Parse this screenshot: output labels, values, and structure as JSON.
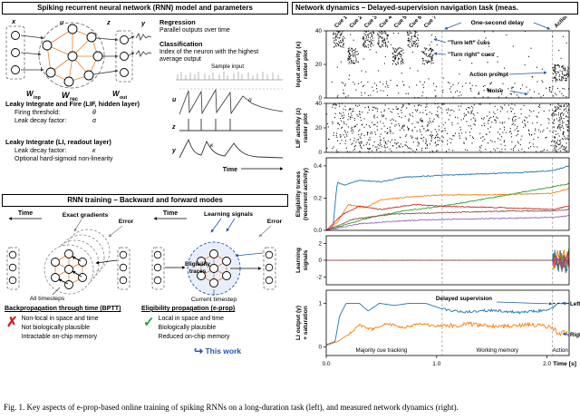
{
  "colors": {
    "annotation_blue": "#2456b0",
    "orange": "#ED7D31",
    "cross_red": "#d62020",
    "check_green": "#2e9e3e"
  },
  "figure": {
    "caption": "Fig. 1.   Key aspects of e-prop-based online training of spiking RNNs on a long-duration task (left), and measured network dynamics (right)."
  },
  "model_panel": {
    "title": "Spiking recurrent neural network (RNN) model and parameters",
    "labels": {
      "x": "x",
      "u": "u",
      "z": "z",
      "y": "y",
      "w": "W",
      "inp": "inp",
      "rec": "rec",
      "out": "out"
    },
    "regression": {
      "title": "Regression",
      "desc": "Parallel outputs over time"
    },
    "classification": {
      "title": "Classification",
      "desc": "Index of the neuron with the highest average output"
    },
    "sample_input_label": "Sample input",
    "lif": {
      "title": "Leaky Integrate and Fire (LIF, hidden layer)",
      "rows": [
        {
          "k": "Firing threshold:",
          "v": "θ"
        },
        {
          "k": "Leak decay factor:",
          "v": "α"
        }
      ]
    },
    "li": {
      "title": "Leaky Integrate (LI, readout layer)",
      "rows": [
        {
          "k": "Leak decay factor:",
          "v": "κ"
        }
      ],
      "note": "Optional hard-sigmoid non-linearity"
    },
    "trace_labels": {
      "u": "u",
      "z": "z",
      "y": "y",
      "alpha": "α",
      "kappa": "κ",
      "time": "Time"
    }
  },
  "training_panel": {
    "title": "RNN training – Backward and forward modes",
    "bptt": {
      "time": "Time",
      "gradients": "Exact gradients",
      "error": "Error",
      "timesteps": "All timesteps",
      "heading": "Backpropagation through time (BPTT)",
      "symbol": "✗",
      "points": [
        "Non-local in space and time",
        "Not biologically plausible",
        "Intractable on-chip memory"
      ]
    },
    "eprop": {
      "time": "Time",
      "signals": "Learning signals",
      "error": "Error",
      "traces_line1": "Eligibility",
      "traces_line2": "traces",
      "timestep": "Current timestep",
      "heading": "Eligibility propagation (e-prop)",
      "symbol": "✓",
      "points": [
        "Local in space and time",
        "Biologically plausible",
        "Reduced on-chip memory"
      ],
      "arrow_glyph": "↪",
      "this_work": "This work"
    }
  },
  "dynamics_panel": {
    "title": "Network dynamics – Delayed-supervision navigation task (meas.",
    "xlabel": "Time [s]",
    "xticks": [
      "0.0",
      "1.0",
      "2.0"
    ],
    "xtick_values": [
      0,
      1,
      2
    ],
    "phase_lines": [
      1.05,
      2.05
    ],
    "annotations": {
      "cues": [
        "Cue 1",
        "Cue 2",
        "Cue 3",
        "Cue 4",
        "Cue 5",
        "Cue 6",
        "Cue 7"
      ],
      "one_second_delay": "One-second delay",
      "action_top": "Action",
      "turn_left": "\"Turn left\" cues",
      "turn_right": "\"Turn right\" cues",
      "action_prompt": "Action prompt",
      "noise": "Noise",
      "delayed_supervision": "Delayed supervision",
      "left": "Left",
      "right": "Right",
      "phases": [
        "Majority cue tracking",
        "Working memory",
        "Action"
      ]
    }
  },
  "chart_data": [
    {
      "type": "raster",
      "name": "input-raster",
      "ylabel_lines": [
        "Input activity (x)",
        "raster plot"
      ],
      "xlim": [
        0,
        2.2
      ],
      "ylim": [
        0,
        40
      ],
      "yticks": [
        0,
        20,
        40
      ],
      "ytick_labels": [
        "0",
        "20",
        "40"
      ],
      "cue_times": [
        0.06,
        0.195,
        0.33,
        0.465,
        0.6,
        0.735,
        0.87
      ],
      "cue_duration": 0.1,
      "cue_directions": [
        "L",
        "R",
        "L",
        "L",
        "R",
        "L",
        "R"
      ],
      "groups": [
        {
          "name": "turn-left-cues",
          "row_range": [
            30,
            40
          ],
          "active": "left-cues",
          "rate": 60
        },
        {
          "name": "turn-right-cues",
          "row_range": [
            20,
            30
          ],
          "active": "right-cues",
          "rate": 60
        },
        {
          "name": "action-prompt",
          "row_range": [
            10,
            20
          ],
          "active": [
            [
              2.05,
              2.2
            ]
          ],
          "rate": 60
        },
        {
          "name": "noise",
          "row_range": [
            0,
            10
          ],
          "active": [
            [
              0,
              2.2
            ]
          ],
          "rate": 7
        },
        {
          "name": "background",
          "row_range": [
            10,
            40
          ],
          "active": [
            [
              0,
              2.2
            ]
          ],
          "rate": 1.2
        }
      ]
    },
    {
      "type": "raster",
      "name": "lif-raster",
      "ylabel_lines": [
        "LIF activity (z)",
        "raster plot"
      ],
      "xlim": [
        0,
        2.2
      ],
      "ylim": [
        0,
        40
      ],
      "yticks": [
        0,
        20,
        40
      ],
      "ytick_labels": [
        "0",
        "20",
        "40"
      ],
      "groups": [
        {
          "name": "baseline",
          "row_range": [
            0,
            40
          ],
          "active": [
            [
              0,
              2.2
            ]
          ],
          "rate": 7
        },
        {
          "name": "cue-response",
          "row_range": [
            0,
            40
          ],
          "active": [
            [
              0.06,
              1.05
            ]
          ],
          "rate": 5
        },
        {
          "name": "action-response",
          "row_range": [
            0,
            40
          ],
          "active": [
            [
              2.05,
              2.2
            ]
          ],
          "rate": 18
        }
      ]
    },
    {
      "type": "line",
      "name": "eligibility-traces",
      "ylabel_lines": [
        "Eligibility traces",
        "(recurrent activity)"
      ],
      "xlim": [
        0,
        2.2
      ],
      "ylim": [
        0,
        0.45
      ],
      "yticks": [
        0,
        0.2,
        0.4
      ],
      "ytick_labels": [
        "0.0",
        "0.2",
        "0.4"
      ],
      "series": [
        {
          "color": "#1f77b4",
          "noise": 0.003,
          "points": [
            [
              0,
              0
            ],
            [
              0.06,
              0.02
            ],
            [
              0.1,
              0.3
            ],
            [
              0.16,
              0.28
            ],
            [
              0.3,
              0.31
            ],
            [
              0.5,
              0.3
            ],
            [
              0.7,
              0.33
            ],
            [
              1.0,
              0.34
            ],
            [
              1.4,
              0.35
            ],
            [
              1.8,
              0.36
            ],
            [
              2.05,
              0.37
            ],
            [
              2.2,
              0.4
            ]
          ]
        },
        {
          "color": "#ff7f0e",
          "noise": 0.003,
          "points": [
            [
              0,
              0
            ],
            [
              0.1,
              0.05
            ],
            [
              0.2,
              0.16
            ],
            [
              0.35,
              0.14
            ],
            [
              0.5,
              0.19
            ],
            [
              0.8,
              0.21
            ],
            [
              1.05,
              0.22
            ],
            [
              1.5,
              0.22
            ],
            [
              2.05,
              0.23
            ],
            [
              2.2,
              0.26
            ]
          ]
        },
        {
          "color": "#2ca02c",
          "noise": 0.003,
          "points": [
            [
              0,
              0
            ],
            [
              0.2,
              0.04
            ],
            [
              0.4,
              0.08
            ],
            [
              0.7,
              0.12
            ],
            [
              1.05,
              0.15
            ],
            [
              1.4,
              0.19
            ],
            [
              1.8,
              0.24
            ],
            [
              2.05,
              0.27
            ],
            [
              2.2,
              0.29
            ]
          ]
        },
        {
          "color": "#d62728",
          "noise": 0.003,
          "points": [
            [
              0,
              0
            ],
            [
              0.15,
              0.1
            ],
            [
              0.3,
              0.15
            ],
            [
              0.5,
              0.13
            ],
            [
              0.8,
              0.16
            ],
            [
              1.05,
              0.15
            ],
            [
              1.6,
              0.14
            ],
            [
              2.05,
              0.13
            ],
            [
              2.2,
              0.15
            ]
          ]
        },
        {
          "color": "#9467bd",
          "noise": 0.003,
          "points": [
            [
              0,
              0
            ],
            [
              0.3,
              0.04
            ],
            [
              0.7,
              0.06
            ],
            [
              1.2,
              0.07
            ],
            [
              2.05,
              0.08
            ],
            [
              2.2,
              0.09
            ]
          ]
        },
        {
          "color": "#8c564b",
          "noise": 0.003,
          "points": [
            [
              0,
              0
            ],
            [
              0.25,
              0.07
            ],
            [
              0.6,
              0.1
            ],
            [
              1.05,
              0.11
            ],
            [
              1.7,
              0.12
            ],
            [
              2.05,
              0.12
            ],
            [
              2.2,
              0.13
            ]
          ]
        }
      ]
    },
    {
      "type": "line",
      "name": "learning-signals",
      "ylabel_lines": [
        "Learning",
        "signals"
      ],
      "xlim": [
        0,
        2.2
      ],
      "ylim": [
        -2.9,
        2.9
      ],
      "yticks": [
        -2,
        0,
        2
      ],
      "ytick_labels": [
        "-2",
        "0",
        "2"
      ],
      "series": [
        {
          "burst": true,
          "flat_until": 2.05,
          "amplitude": 1.9,
          "color": "#1f77b4"
        },
        {
          "burst": true,
          "flat_until": 2.05,
          "amplitude": 1.7,
          "color": "#ff7f0e"
        },
        {
          "burst": true,
          "flat_until": 2.05,
          "amplitude": 1.8,
          "color": "#2ca02c"
        },
        {
          "burst": true,
          "flat_until": 2.05,
          "amplitude": 1.6,
          "color": "#d62728"
        },
        {
          "burst": true,
          "flat_until": 2.05,
          "amplitude": 1.5,
          "color": "#9467bd"
        },
        {
          "burst": true,
          "flat_until": 2.05,
          "amplitude": 1.4,
          "color": "#8c564b"
        }
      ]
    },
    {
      "type": "line",
      "name": "li-output",
      "ylabel_lines": [
        "LI output (y)",
        "+ saturation"
      ],
      "xlim": [
        0,
        2.2
      ],
      "ylim": [
        -0.2,
        1.3
      ],
      "yticks": [
        0,
        1
      ],
      "ytick_labels": [
        "0",
        "1"
      ],
      "clip": 1.0,
      "target": {
        "t": [
          2.05,
          2.2
        ],
        "v": 1.0
      },
      "series": [
        {
          "name": "Left",
          "color": "#1f77b4",
          "points": [
            [
              0,
              0.05
            ],
            [
              0.08,
              0.12
            ],
            [
              0.12,
              0.7
            ],
            [
              0.18,
              1.0
            ],
            [
              0.3,
              1.0
            ],
            [
              0.38,
              0.82
            ],
            [
              0.48,
              1.0
            ],
            [
              0.62,
              0.95
            ],
            [
              0.75,
              1.0
            ],
            [
              0.9,
              1.0
            ],
            [
              1.05,
              0.87
            ],
            [
              1.25,
              0.8
            ],
            [
              1.5,
              0.84
            ],
            [
              1.75,
              0.79
            ],
            [
              2.0,
              0.84
            ],
            [
              2.05,
              0.88
            ],
            [
              2.09,
              1.0
            ],
            [
              2.2,
              1.0
            ]
          ],
          "noise_windows": [
            {
              "t": [
                1.05,
                2.05
              ],
              "amp": 0.03
            },
            {
              "t": [
                2.05,
                2.2
              ],
              "amp": 0.02
            }
          ]
        },
        {
          "name": "Right",
          "color": "#ff7f0e",
          "points": [
            [
              0,
              0.03
            ],
            [
              0.1,
              0.12
            ],
            [
              0.2,
              0.28
            ],
            [
              0.3,
              0.5
            ],
            [
              0.42,
              0.4
            ],
            [
              0.55,
              0.55
            ],
            [
              0.68,
              0.44
            ],
            [
              0.85,
              0.52
            ],
            [
              1.05,
              0.47
            ],
            [
              1.3,
              0.52
            ],
            [
              1.55,
              0.46
            ],
            [
              1.8,
              0.51
            ],
            [
              2.05,
              0.45
            ],
            [
              2.1,
              0.28
            ],
            [
              2.15,
              0.36
            ],
            [
              2.2,
              0.26
            ]
          ],
          "noise_windows": [
            {
              "t": [
                0.2,
                1.05
              ],
              "amp": 0.03
            },
            {
              "t": [
                1.05,
                2.05
              ],
              "amp": 0.05
            },
            {
              "t": [
                2.05,
                2.2
              ],
              "amp": 0.06
            }
          ]
        }
      ]
    }
  ]
}
